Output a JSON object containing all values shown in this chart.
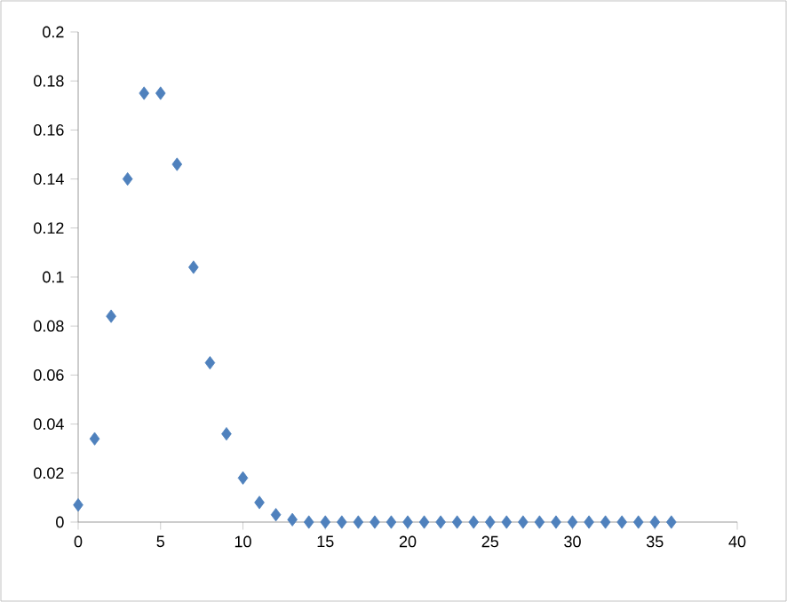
{
  "chart_data": {
    "type": "scatter",
    "marker": "diamond",
    "series": [
      {
        "color": "#4f81bd",
        "x": [
          0,
          1,
          2,
          3,
          4,
          5,
          6,
          7,
          8,
          9,
          10,
          11,
          12,
          13,
          14,
          15,
          16,
          17,
          18,
          19,
          20,
          21,
          22,
          23,
          24,
          25,
          26,
          27,
          28,
          29,
          30,
          31,
          32,
          33,
          34,
          35,
          36
        ],
        "values": [
          0.007,
          0.034,
          0.084,
          0.14,
          0.175,
          0.175,
          0.146,
          0.104,
          0.065,
          0.036,
          0.018,
          0.008,
          0.003,
          0.001,
          0,
          0,
          0,
          0,
          0,
          0,
          0,
          0,
          0,
          0,
          0,
          0,
          0,
          0,
          0,
          0,
          0,
          0,
          0,
          0,
          0,
          0,
          0
        ]
      }
    ],
    "xlim": [
      0,
      40
    ],
    "xticks": [
      0,
      5,
      10,
      15,
      20,
      25,
      30,
      35,
      40
    ],
    "ylim": [
      0,
      0.2
    ],
    "yticks": [
      0,
      0.02,
      0.04,
      0.06,
      0.08,
      0.1,
      0.12,
      0.14,
      0.16,
      0.18,
      0.2
    ]
  }
}
